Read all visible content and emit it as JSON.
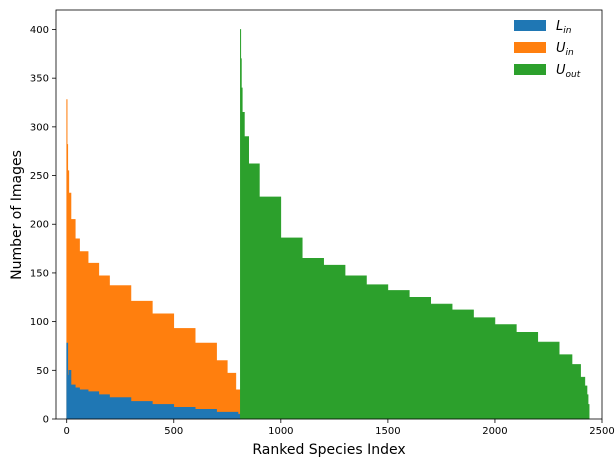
{
  "chart_data": {
    "type": "area",
    "xlabel": "Ranked Species Index",
    "ylabel": "Number of Images",
    "xlim": [
      -50,
      2500
    ],
    "ylim": [
      0,
      420
    ],
    "xticks": [
      0,
      500,
      1000,
      1500,
      2000,
      2500
    ],
    "yticks": [
      0,
      50,
      100,
      150,
      200,
      250,
      300,
      350,
      400
    ],
    "grid": false,
    "legend_position": "top-right",
    "series": [
      {
        "name": "L_in",
        "legend_main": "L",
        "legend_sub": "in",
        "color": "#1f77b4",
        "x": [
          0,
          5,
          10,
          20,
          40,
          60,
          100,
          150,
          200,
          300,
          400,
          500,
          600,
          700,
          800,
          810
        ],
        "values": [
          78,
          45,
          50,
          35,
          32,
          30,
          28,
          25,
          22,
          18,
          15,
          12,
          10,
          7,
          5,
          5
        ]
      },
      {
        "name": "U_in",
        "legend_main": "U",
        "legend_sub": "in",
        "color": "#ff7f0e",
        "x": [
          0,
          2,
          5,
          10,
          20,
          40,
          60,
          100,
          150,
          200,
          300,
          400,
          500,
          600,
          700,
          750,
          790,
          810
        ],
        "values": [
          328,
          282,
          255,
          232,
          205,
          185,
          172,
          160,
          147,
          137,
          121,
          108,
          93,
          78,
          60,
          47,
          30,
          5
        ]
      },
      {
        "name": "U_out",
        "legend_main": "U",
        "legend_sub": "out",
        "color": "#2ca02c",
        "x": [
          811,
          813,
          816,
          820,
          830,
          850,
          900,
          1000,
          1100,
          1200,
          1300,
          1400,
          1500,
          1600,
          1700,
          1800,
          1900,
          2000,
          2100,
          2200,
          2300,
          2360,
          2400,
          2420,
          2430,
          2435,
          2440
        ],
        "values": [
          400,
          370,
          340,
          315,
          290,
          262,
          228,
          186,
          165,
          158,
          147,
          138,
          132,
          125,
          118,
          112,
          104,
          97,
          89,
          79,
          66,
          56,
          43,
          34,
          25,
          15,
          5
        ]
      }
    ]
  }
}
